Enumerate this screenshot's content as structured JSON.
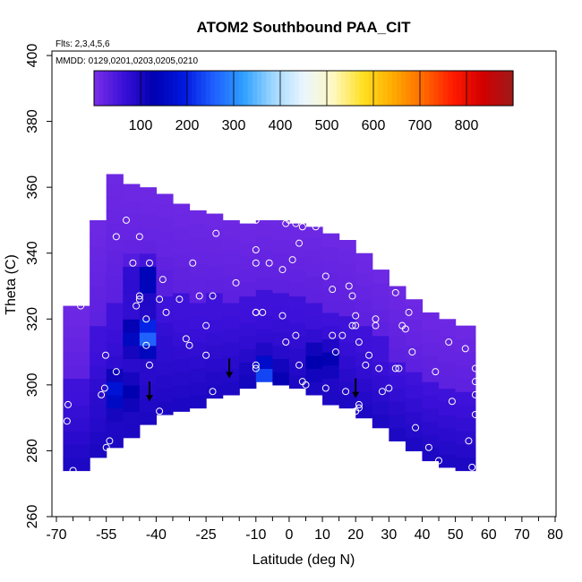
{
  "chart_data": {
    "type": "heatmap",
    "title": "ATOM2 Southbound PAA_CIT",
    "flights_note": "Flts: 2,3,4,5,6",
    "dates_note": "MMDD: 0129,0201,0203,0205,0210",
    "xlabel": "Latitude (deg N)",
    "ylabel": "Theta (C)",
    "xlim": [
      -70,
      80
    ],
    "ylim": [
      260,
      400
    ],
    "x_ticks": [
      -70,
      -55,
      -40,
      -25,
      -10,
      0,
      10,
      20,
      30,
      40,
      50,
      60,
      70,
      80
    ],
    "x_minor": [
      -65,
      -60,
      -50,
      -45,
      -35,
      -30,
      -20,
      -15,
      -5,
      5,
      15,
      25,
      35,
      45,
      55,
      65,
      75
    ],
    "y_ticks": [
      260,
      280,
      300,
      320,
      340,
      360,
      380,
      400
    ],
    "colorbar": {
      "range": [
        0,
        900
      ],
      "ticks": [
        100,
        200,
        300,
        400,
        500,
        600,
        700,
        800
      ],
      "colors": [
        "#7a2ee6",
        "#3a10d8",
        "#0000b0",
        "#0018e0",
        "#1f5fff",
        "#2fa0ff",
        "#a0d8ff",
        "#eaf6ff",
        "#fff8c0",
        "#ffe020",
        "#ffaa00",
        "#ff6a00",
        "#ff1a00",
        "#d10000",
        "#9e1a1a"
      ]
    },
    "field": {
      "lat_edges": [
        -68,
        -60,
        -55,
        -50,
        -45,
        -40,
        -35,
        -30,
        -25,
        -20,
        -15,
        -10,
        -5,
        0,
        5,
        10,
        15,
        20,
        25,
        30,
        35,
        40,
        45,
        50,
        56
      ],
      "lower_theta": [
        274,
        278,
        281,
        284,
        288,
        291,
        292,
        293,
        296,
        297,
        299,
        301,
        300,
        299,
        297,
        294,
        293,
        290,
        287,
        283,
        280,
        277,
        275,
        274
      ],
      "upper_theta": [
        324,
        350,
        364,
        361,
        360,
        358,
        355,
        353,
        352,
        350,
        349,
        350,
        350,
        349,
        348,
        346,
        344,
        340,
        335,
        330,
        326,
        322,
        320,
        318
      ]
    },
    "enhancements": [
      {
        "lat": -44,
        "theta": 315,
        "value": 300
      },
      {
        "lat": -44,
        "theta": 332,
        "value": 220
      },
      {
        "lat": -51,
        "theta": 298,
        "value": 180
      },
      {
        "lat": -7,
        "theta": 303,
        "value": 200
      },
      {
        "lat": 10,
        "theta": 308,
        "value": 140
      }
    ],
    "observations": [
      [
        -66.8,
        289
      ],
      [
        -66.5,
        294
      ],
      [
        -62.7,
        324
      ],
      [
        -56.5,
        297
      ],
      [
        -55.5,
        299
      ],
      [
        -55.2,
        309
      ],
      [
        -54,
        283
      ],
      [
        -55,
        281
      ],
      [
        -52,
        304
      ],
      [
        -52,
        345
      ],
      [
        -49,
        350
      ],
      [
        -47,
        337
      ],
      [
        -46,
        324
      ],
      [
        -45,
        327
      ],
      [
        -45,
        326
      ],
      [
        -45,
        345
      ],
      [
        -43,
        320
      ],
      [
        -42,
        337
      ],
      [
        -42,
        306
      ],
      [
        -43,
        312
      ],
      [
        -39,
        292
      ],
      [
        -39,
        326
      ],
      [
        -38,
        332
      ],
      [
        -37,
        322
      ],
      [
        -33,
        326
      ],
      [
        -31,
        314
      ],
      [
        -30,
        312
      ],
      [
        -29,
        337
      ],
      [
        -27,
        327
      ],
      [
        -25,
        318
      ],
      [
        -25,
        309
      ],
      [
        -23,
        327
      ],
      [
        -23,
        298
      ],
      [
        -22,
        346
      ],
      [
        -16,
        331
      ],
      [
        -11,
        351
      ],
      [
        -10,
        350
      ],
      [
        -10,
        341
      ],
      [
        -10,
        337
      ],
      [
        -10,
        322
      ],
      [
        -10,
        322
      ],
      [
        -8,
        322
      ],
      [
        -6,
        337
      ],
      [
        -10,
        306
      ],
      [
        -10,
        305
      ],
      [
        -2,
        321
      ],
      [
        -1,
        313
      ],
      [
        -2,
        335
      ],
      [
        -1,
        349
      ],
      [
        0,
        350
      ],
      [
        2,
        349
      ],
      [
        4,
        348
      ],
      [
        3,
        343
      ],
      [
        1,
        338
      ],
      [
        2,
        315
      ],
      [
        3,
        306
      ],
      [
        4,
        301
      ],
      [
        5,
        300
      ],
      [
        8,
        348
      ],
      [
        9,
        349
      ],
      [
        11,
        333
      ],
      [
        13,
        329
      ],
      [
        13,
        315
      ],
      [
        14,
        310
      ],
      [
        11,
        299
      ],
      [
        17,
        298
      ],
      [
        16,
        315
      ],
      [
        18,
        330
      ],
      [
        19,
        327
      ],
      [
        19,
        318
      ],
      [
        20,
        321
      ],
      [
        20,
        318
      ],
      [
        21,
        313
      ],
      [
        21,
        293
      ],
      [
        21,
        294
      ],
      [
        20,
        292
      ],
      [
        23,
        306
      ],
      [
        24,
        309
      ],
      [
        26,
        318
      ],
      [
        26,
        320
      ],
      [
        27,
        305
      ],
      [
        28,
        298
      ],
      [
        30,
        299
      ],
      [
        32,
        305
      ],
      [
        32,
        328
      ],
      [
        33,
        305
      ],
      [
        34,
        318
      ],
      [
        35,
        317
      ],
      [
        36,
        322
      ],
      [
        37,
        310
      ],
      [
        38,
        287
      ],
      [
        42,
        281
      ],
      [
        44,
        304
      ],
      [
        45,
        277
      ],
      [
        48,
        313
      ],
      [
        49,
        295
      ],
      [
        52,
        321
      ],
      [
        53,
        311
      ],
      [
        54,
        283
      ],
      [
        55,
        275
      ],
      [
        56,
        305
      ],
      [
        56,
        301
      ],
      [
        56,
        297
      ],
      [
        56,
        291
      ],
      [
        58,
        303
      ],
      [
        -65,
        274
      ]
    ],
    "arrows": [
      {
        "lat": -42,
        "theta": 295
      },
      {
        "lat": -18,
        "theta": 302
      },
      {
        "lat": 20,
        "theta": 296
      }
    ]
  }
}
